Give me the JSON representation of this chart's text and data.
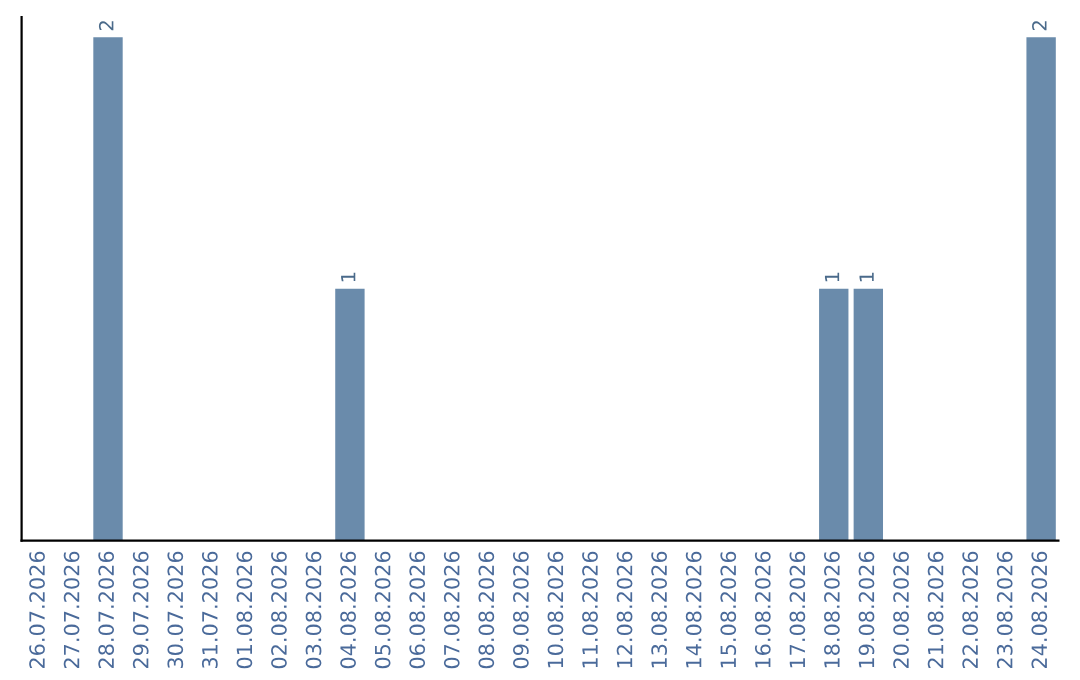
{
  "chart_data": {
    "type": "bar",
    "categories": [
      "26.07.2026",
      "27.07.2026",
      "28.07.2026",
      "29.07.2026",
      "30.07.2026",
      "31.07.2026",
      "01.08.2026",
      "02.08.2026",
      "03.08.2026",
      "04.08.2026",
      "05.08.2026",
      "06.08.2026",
      "07.08.2026",
      "08.08.2026",
      "09.08.2026",
      "10.08.2026",
      "11.08.2026",
      "12.08.2026",
      "13.08.2026",
      "14.08.2026",
      "15.08.2026",
      "16.08.2026",
      "17.08.2026",
      "18.08.2026",
      "19.08.2026",
      "20.08.2026",
      "21.08.2026",
      "22.08.2026",
      "23.08.2026",
      "24.08.2026"
    ],
    "values": [
      0,
      0,
      2,
      0,
      0,
      0,
      0,
      0,
      0,
      1,
      0,
      0,
      0,
      0,
      0,
      0,
      0,
      0,
      0,
      0,
      0,
      0,
      0,
      1,
      1,
      0,
      0,
      0,
      0,
      2
    ],
    "value_labels": [
      null,
      null,
      "2",
      null,
      null,
      null,
      null,
      null,
      null,
      "1",
      null,
      null,
      null,
      null,
      null,
      null,
      null,
      null,
      null,
      null,
      null,
      null,
      null,
      "1",
      "1",
      null,
      null,
      null,
      null,
      "2"
    ],
    "color": "#6a8bab",
    "grid": false,
    "legend": false
  }
}
